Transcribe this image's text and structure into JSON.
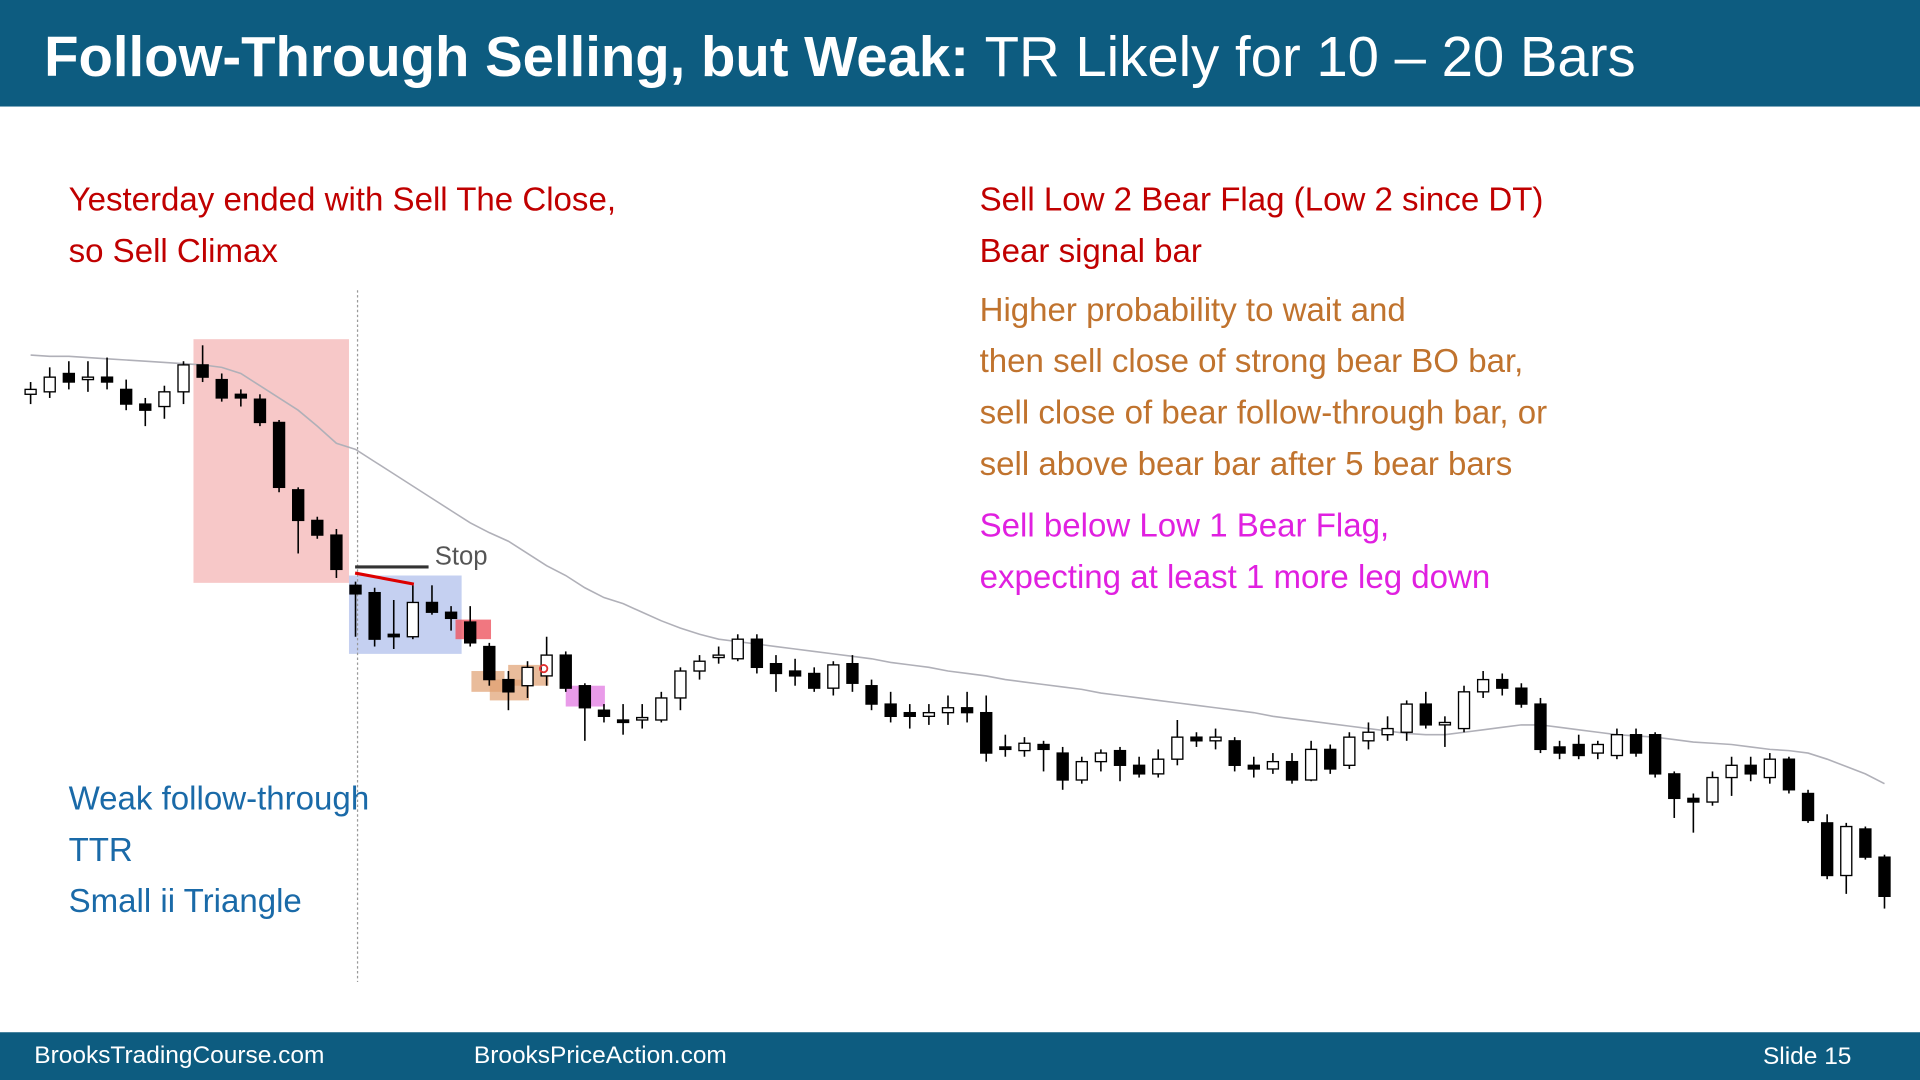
{
  "header": {
    "title_bold": "Follow-Through Selling, but Weak:",
    "title_rest": "TR Likely for 10 – 20 Bars"
  },
  "annotations": {
    "left_red": [
      "Yesterday ended with Sell The Close,",
      "so Sell Climax"
    ],
    "right_red": [
      "Sell Low 2 Bear Flag (Low 2 since DT)",
      "Bear signal bar"
    ],
    "right_orange": [
      "Higher probability to wait and",
      "then sell close of strong bear BO bar,",
      "sell close of bear follow-through bar, or",
      "sell above bear bar after 5 bear bars"
    ],
    "right_magenta": [
      "Sell below Low 1 Bear Flag,",
      "expecting at least 1 more leg down"
    ],
    "left_blue": [
      "Weak follow-through",
      "TTR",
      "Small ii Triangle"
    ],
    "stop": "Stop"
  },
  "footer": {
    "left": "BrooksTradingCourse.com",
    "middle": "BrooksPriceAction.com",
    "right": "Slide  15"
  },
  "chart_data": {
    "type": "candlestick",
    "ylim": [
      0,
      465
    ],
    "up_color": "#ffffff",
    "down_color": "#000000",
    "ema_color": "#b0b0b8",
    "high": [
      433,
      445,
      450,
      450,
      453,
      435,
      420,
      430,
      450,
      463,
      440,
      427,
      423,
      402,
      347,
      323,
      313,
      270,
      265,
      255,
      267,
      267,
      250,
      250,
      220,
      197,
      205,
      225,
      213,
      187,
      170,
      170,
      170,
      180,
      200,
      210,
      217,
      227,
      227,
      210,
      207,
      200,
      205,
      210,
      190,
      180,
      170,
      170,
      177,
      180,
      177,
      145,
      143,
      140,
      135,
      127,
      133,
      135,
      127,
      133,
      157,
      147,
      150,
      143,
      127,
      130,
      130,
      140,
      137,
      147,
      155,
      160,
      173,
      180,
      160,
      185,
      197,
      195,
      187,
      175,
      140,
      145,
      140,
      150,
      150,
      147,
      115,
      97,
      115,
      127,
      127,
      130,
      127,
      100,
      80,
      73,
      70,
      47
    ],
    "low": [
      415,
      420,
      427,
      425,
      427,
      410,
      397,
      403,
      415,
      433,
      417,
      413,
      397,
      343,
      293,
      305,
      273,
      225,
      217,
      215,
      223,
      243,
      230,
      217,
      185,
      165,
      175,
      185,
      180,
      140,
      155,
      145,
      150,
      155,
      165,
      190,
      203,
      205,
      195,
      180,
      185,
      180,
      177,
      180,
      165,
      155,
      150,
      153,
      153,
      155,
      123,
      127,
      127,
      115,
      100,
      105,
      115,
      107,
      110,
      110,
      120,
      135,
      133,
      115,
      110,
      113,
      105,
      107,
      113,
      117,
      133,
      140,
      140,
      150,
      135,
      147,
      175,
      177,
      167,
      130,
      125,
      125,
      125,
      125,
      127,
      110,
      77,
      65,
      87,
      95,
      107,
      105,
      97,
      73,
      27,
      15,
      43,
      3
    ],
    "open": [
      423,
      425,
      440,
      435,
      437,
      427,
      415,
      413,
      425,
      447,
      435,
      423,
      419,
      400,
      345,
      320,
      308,
      267,
      261,
      227,
      225,
      253,
      245,
      237,
      217,
      190,
      185,
      193,
      210,
      185,
      165,
      157,
      157,
      157,
      175,
      197,
      208,
      207,
      223,
      203,
      197,
      195,
      183,
      203,
      185,
      170,
      163,
      160,
      163,
      167,
      163,
      135,
      132,
      137,
      130,
      108,
      123,
      132,
      120,
      113,
      125,
      143,
      140,
      140,
      120,
      117,
      123,
      108,
      133,
      120,
      140,
      145,
      147,
      170,
      153,
      150,
      180,
      190,
      183,
      170,
      135,
      137,
      130,
      128,
      145,
      145,
      113,
      93,
      90,
      110,
      120,
      110,
      125,
      97,
      73,
      30,
      68,
      45
    ],
    "close": [
      427,
      437,
      433,
      437,
      433,
      415,
      410,
      425,
      447,
      437,
      420,
      420,
      400,
      347,
      320,
      308,
      280,
      260,
      223,
      225,
      253,
      245,
      240,
      220,
      190,
      180,
      200,
      210,
      183,
      167,
      160,
      155,
      159,
      175,
      197,
      205,
      210,
      223,
      200,
      195,
      193,
      183,
      202,
      187,
      170,
      160,
      160,
      163,
      167,
      163,
      130,
      133,
      138,
      133,
      108,
      123,
      130,
      120,
      113,
      125,
      143,
      140,
      143,
      120,
      117,
      123,
      108,
      133,
      117,
      143,
      147,
      150,
      170,
      153,
      155,
      180,
      190,
      183,
      170,
      133,
      130,
      128,
      137,
      145,
      130,
      113,
      93,
      90,
      110,
      120,
      113,
      125,
      100,
      75,
      30,
      70,
      45,
      13
    ],
    "ema": [
      455,
      454,
      454,
      453,
      452,
      451,
      450,
      449,
      448,
      447,
      445,
      440,
      430,
      420,
      410,
      397,
      383,
      378,
      368,
      358,
      348,
      338,
      328,
      318,
      310,
      303,
      293,
      283,
      275,
      265,
      257,
      252,
      245,
      238,
      232,
      227,
      223,
      221,
      219,
      217,
      215,
      213,
      211,
      209,
      207,
      204,
      202,
      200,
      197,
      195,
      193,
      190,
      188,
      186,
      184,
      182,
      179,
      177,
      175,
      173,
      171,
      169,
      167,
      165,
      163,
      160,
      158,
      156,
      154,
      152,
      150,
      148,
      146,
      145,
      145,
      147,
      149,
      151,
      153,
      153,
      151,
      149,
      147,
      145,
      144,
      143,
      141,
      139,
      138,
      137,
      135,
      133,
      132,
      130,
      125,
      119,
      113,
      105
    ]
  }
}
